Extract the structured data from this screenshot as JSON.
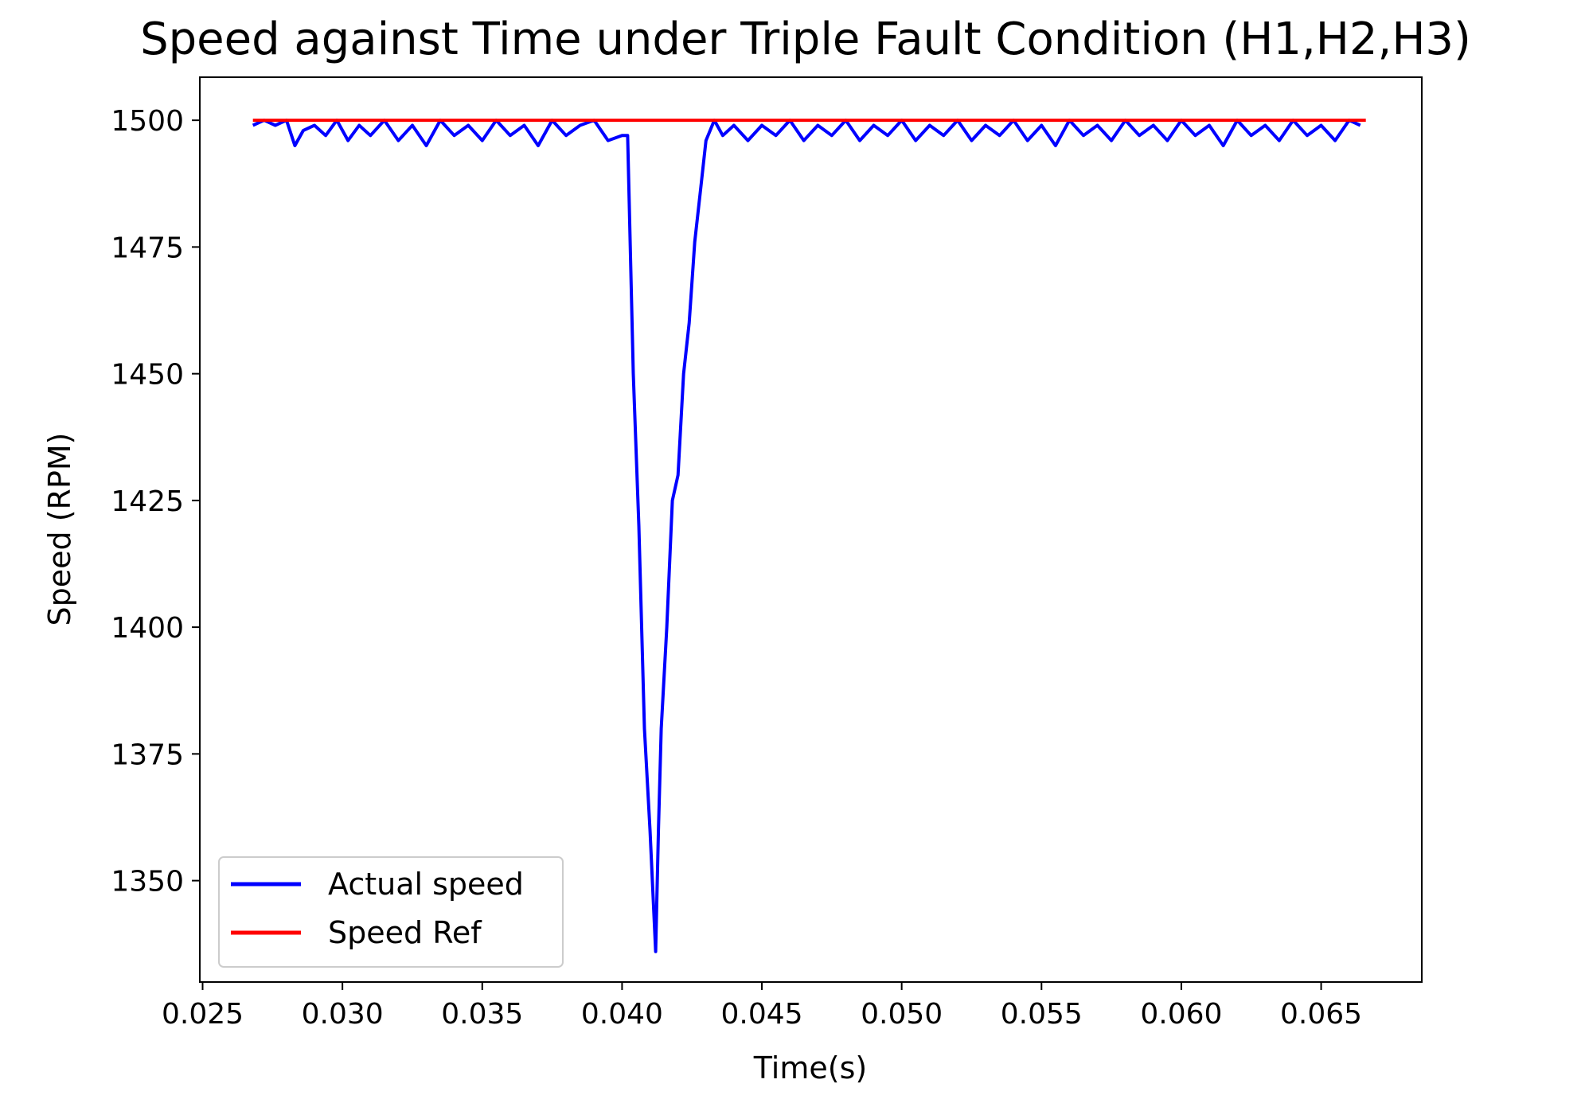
{
  "chart_data": {
    "type": "line",
    "title": "Speed against Time under Triple Fault Condition (H1,H2,H3)",
    "xlabel": "Time(s)",
    "ylabel": "Speed (RPM)",
    "xlim": [
      0.0249,
      0.0686
    ],
    "ylim": [
      1330,
      1508.5
    ],
    "xticks": [
      0.025,
      0.03,
      0.035,
      0.04,
      0.045,
      0.05,
      0.055,
      0.06,
      0.065
    ],
    "xtick_labels": [
      "0.025",
      "0.030",
      "0.035",
      "0.040",
      "0.045",
      "0.050",
      "0.055",
      "0.060",
      "0.065"
    ],
    "yticks": [
      1350,
      1375,
      1400,
      1425,
      1450,
      1475,
      1500
    ],
    "ytick_labels": [
      "1350",
      "1375",
      "1400",
      "1425",
      "1450",
      "1475",
      "1500"
    ],
    "grid": false,
    "legend_position": "lower-left",
    "series": [
      {
        "name": "Actual speed",
        "color": "#0000ff",
        "x": [
          0.0268,
          0.0272,
          0.0276,
          0.028,
          0.0283,
          0.0286,
          0.029,
          0.0294,
          0.0298,
          0.0302,
          0.0306,
          0.031,
          0.0315,
          0.032,
          0.0325,
          0.033,
          0.0335,
          0.034,
          0.0345,
          0.035,
          0.0355,
          0.036,
          0.0365,
          0.037,
          0.0375,
          0.038,
          0.0385,
          0.039,
          0.0395,
          0.04,
          0.0402,
          0.0404,
          0.0406,
          0.0408,
          0.041,
          0.0412,
          0.0413,
          0.0414,
          0.0416,
          0.0418,
          0.042,
          0.0422,
          0.0424,
          0.0426,
          0.0428,
          0.043,
          0.0433,
          0.0436,
          0.044,
          0.0445,
          0.045,
          0.0455,
          0.046,
          0.0465,
          0.047,
          0.0475,
          0.048,
          0.0485,
          0.049,
          0.0495,
          0.05,
          0.0505,
          0.051,
          0.0515,
          0.052,
          0.0525,
          0.053,
          0.0535,
          0.054,
          0.0545,
          0.055,
          0.0555,
          0.056,
          0.0565,
          0.057,
          0.0575,
          0.058,
          0.0585,
          0.059,
          0.0595,
          0.06,
          0.0605,
          0.061,
          0.0615,
          0.062,
          0.0625,
          0.063,
          0.0635,
          0.064,
          0.0645,
          0.065,
          0.0655,
          0.066,
          0.0664
        ],
        "y": [
          1499,
          1500,
          1499,
          1500,
          1495,
          1498,
          1499,
          1497,
          1500,
          1496,
          1499,
          1497,
          1500,
          1496,
          1499,
          1495,
          1500,
          1497,
          1499,
          1496,
          1500,
          1497,
          1499,
          1495,
          1500,
          1497,
          1499,
          1500,
          1496,
          1497,
          1497,
          1450,
          1420,
          1380,
          1360,
          1336,
          1360,
          1380,
          1400,
          1425,
          1430,
          1450,
          1460,
          1476,
          1486,
          1496,
          1500,
          1497,
          1499,
          1496,
          1499,
          1497,
          1500,
          1496,
          1499,
          1497,
          1500,
          1496,
          1499,
          1497,
          1500,
          1496,
          1499,
          1497,
          1500,
          1496,
          1499,
          1497,
          1500,
          1496,
          1499,
          1495,
          1500,
          1497,
          1499,
          1496,
          1500,
          1497,
          1499,
          1496,
          1500,
          1497,
          1499,
          1495,
          1500,
          1497,
          1499,
          1496,
          1500,
          1497,
          1499,
          1496,
          1500,
          1499
        ]
      },
      {
        "name": "Speed Ref",
        "color": "#ff0000",
        "x": [
          0.0268,
          0.0666
        ],
        "y": [
          1500,
          1500
        ]
      }
    ]
  }
}
